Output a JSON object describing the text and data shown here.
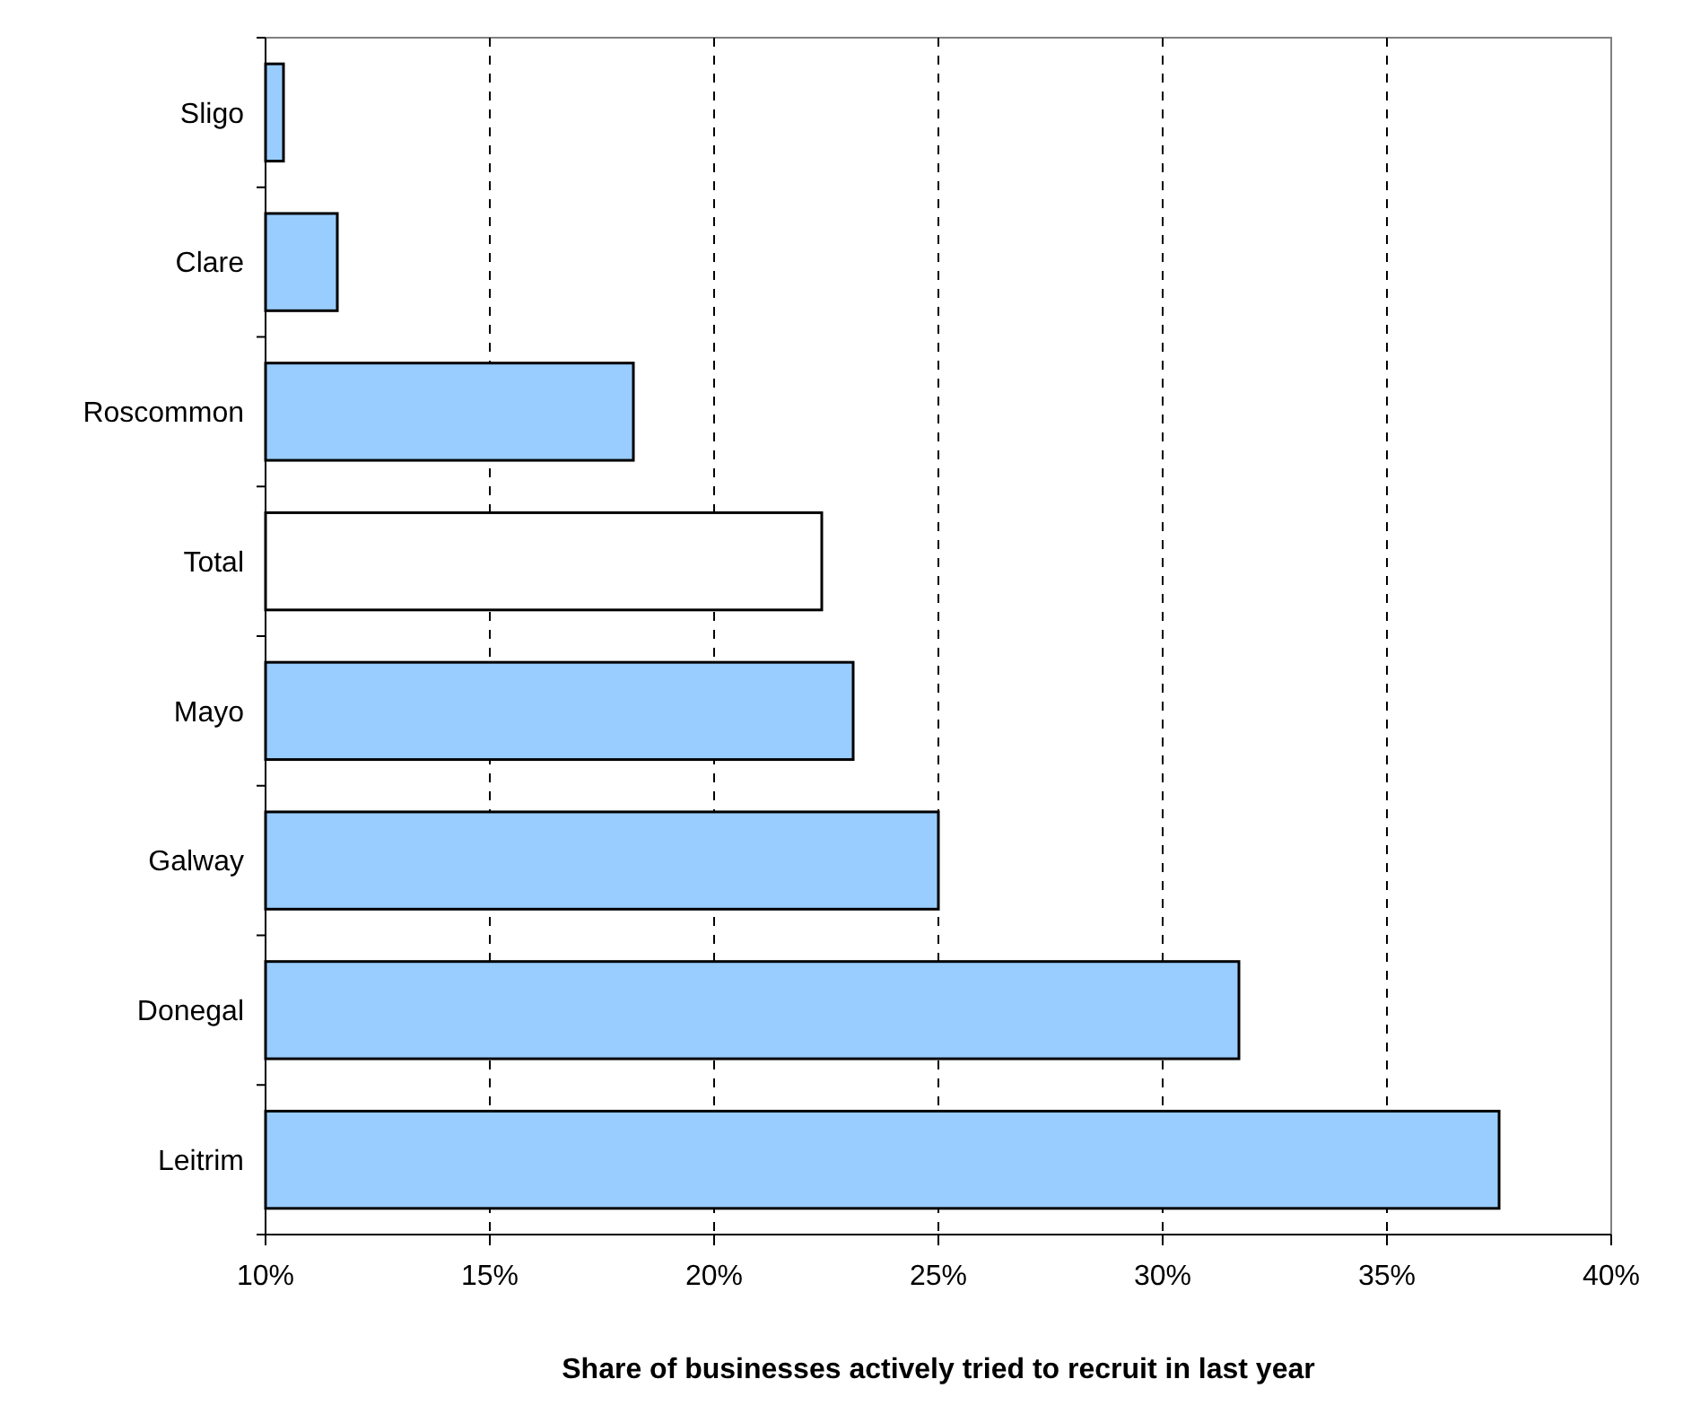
{
  "chart_data": {
    "type": "bar",
    "orientation": "horizontal",
    "xlabel": "Share of businesses actively tried to recruit in last year",
    "categories": [
      "Sligo",
      "Clare",
      "Roscommon",
      "Total",
      "Mayo",
      "Galway",
      "Donegal",
      "Leitrim"
    ],
    "values": [
      10.4,
      11.6,
      18.2,
      22.4,
      23.1,
      25.0,
      31.7,
      37.5
    ],
    "colors": [
      "#99ccff",
      "#99ccff",
      "#99ccff",
      "#ffffff",
      "#99ccff",
      "#99ccff",
      "#99ccff",
      "#99ccff"
    ],
    "xlim": [
      10,
      40
    ],
    "xticks": [
      {
        "value": 10,
        "label": "10%"
      },
      {
        "value": 15,
        "label": "15%"
      },
      {
        "value": 20,
        "label": "20%"
      },
      {
        "value": 25,
        "label": "25%"
      },
      {
        "value": 30,
        "label": "30%"
      },
      {
        "value": 35,
        "label": "35%"
      },
      {
        "value": 40,
        "label": "40%"
      }
    ],
    "grid": "x",
    "line_style": "dashed"
  }
}
